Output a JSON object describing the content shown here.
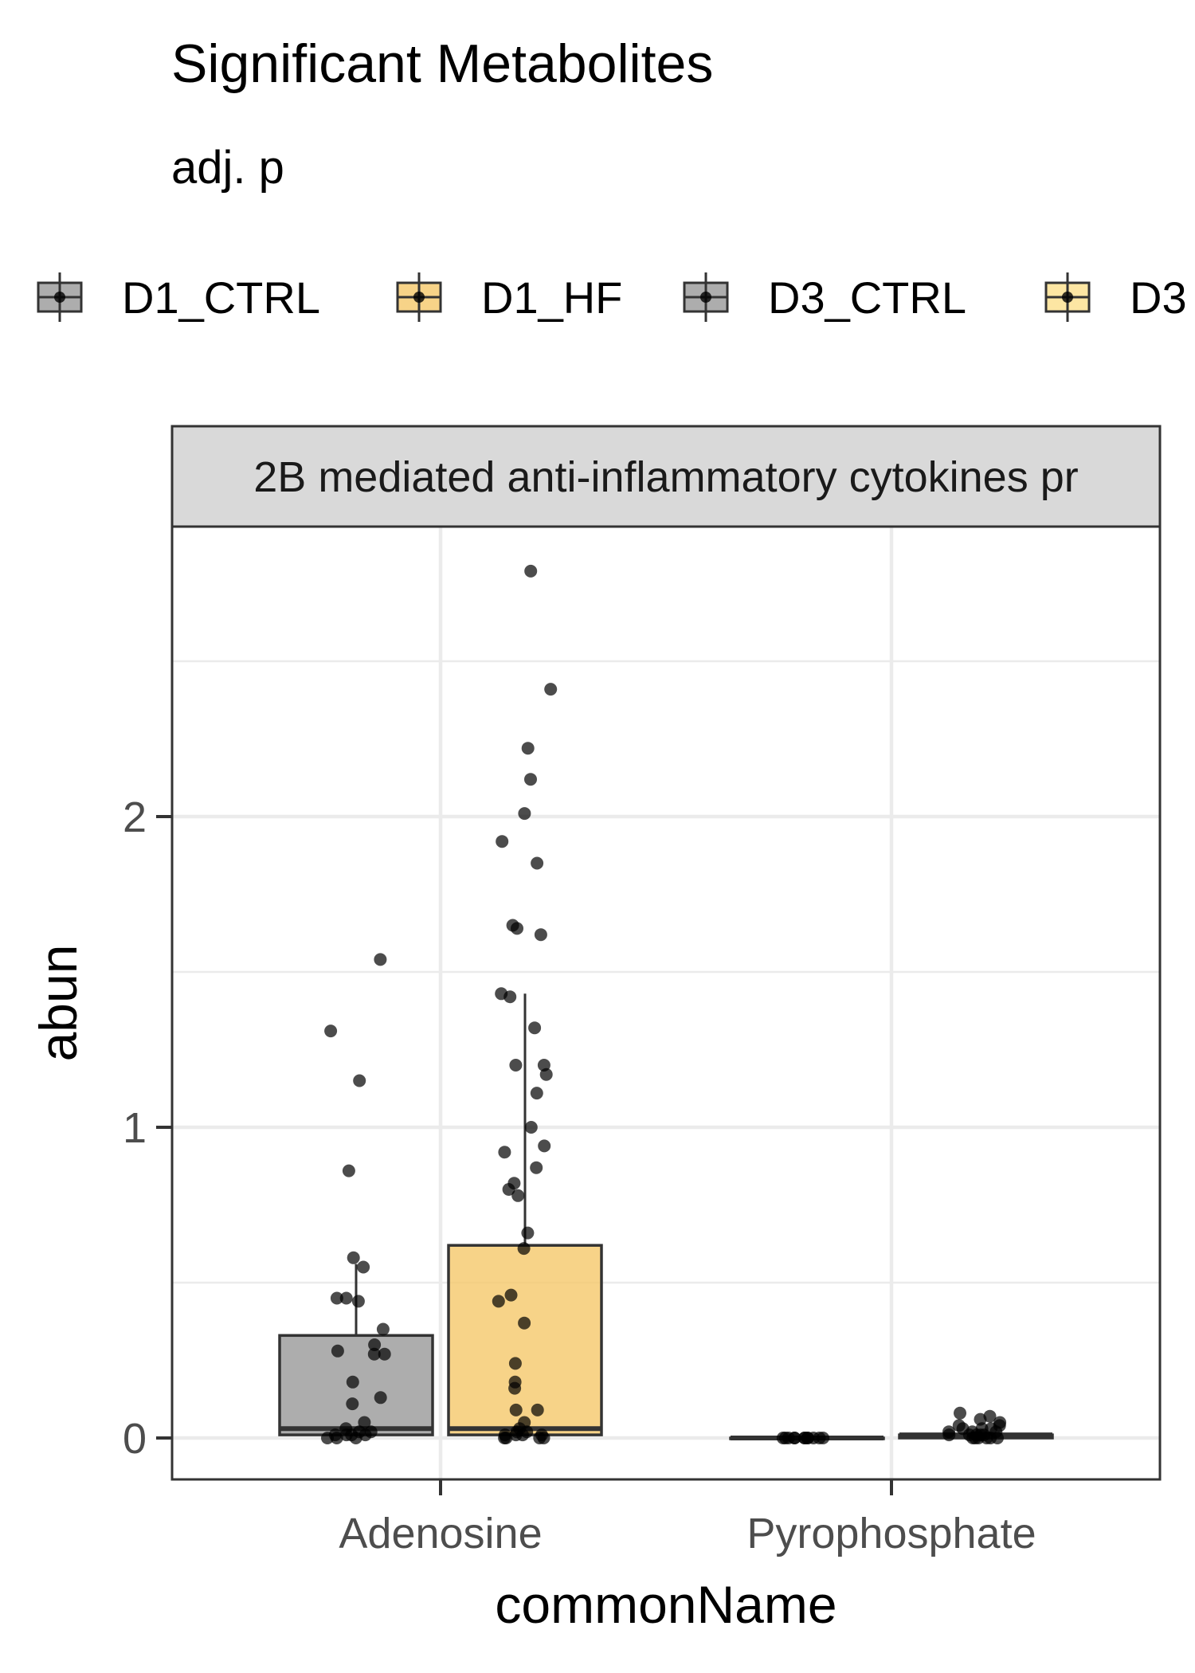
{
  "chart_data": {
    "type": "bar",
    "title": "Significant Metabolites",
    "subtitle": "adj. p",
    "facet_label": "2B mediated anti-inflammatory cytokines pr",
    "xlabel": "commonName",
    "ylabel": "abun",
    "ylim": [
      -0.13,
      2.93
    ],
    "y_ticks": [
      0,
      1,
      2
    ],
    "grid": true,
    "legend_position": "top",
    "categories": [
      "Adenosine",
      "Pyrophosphate"
    ],
    "series": [
      {
        "name": "D1_CTRL",
        "color": "#999999",
        "stats": [
          {
            "category": "Adenosine",
            "q1": 0.01,
            "median": 0.03,
            "q3": 0.33,
            "whisker_high": 0.56
          },
          {
            "category": "Pyrophosphate",
            "q1": 0.0,
            "median": 0.0,
            "q3": 0.0,
            "whisker_high": 0.0
          }
        ],
        "points": [
          {
            "category": "Adenosine",
            "values": [
              1.54,
              1.31,
              1.15,
              0.86,
              0.58,
              0.55,
              0.45,
              0.45,
              0.44,
              0.35,
              0.3,
              0.28,
              0.27,
              0.27,
              0.18,
              0.13,
              0.11,
              0.05,
              0.03,
              0.02,
              0.02,
              0.01,
              0.01,
              0.01,
              0.01,
              0.0,
              0.0,
              0.0
            ]
          },
          {
            "category": "Pyrophosphate",
            "values": [
              0.0,
              0.0,
              0.0,
              0.0,
              0.0,
              0.0,
              0.0,
              0.0,
              0.0,
              0.0,
              0.0,
              0.0
            ]
          }
        ]
      },
      {
        "name": "D1_HF",
        "color": "#F5C86A",
        "stats": [
          {
            "category": "Adenosine",
            "q1": 0.01,
            "median": 0.03,
            "q3": 0.62,
            "whisker_high": 1.43
          },
          {
            "category": "Pyrophosphate",
            "q1": 0.0,
            "median": 0.01,
            "q3": 0.01,
            "whisker_high": 0.02
          }
        ],
        "points": [
          {
            "category": "Adenosine",
            "values": [
              2.79,
              2.41,
              2.22,
              2.12,
              2.01,
              1.92,
              1.85,
              1.65,
              1.64,
              1.62,
              1.43,
              1.42,
              1.32,
              1.2,
              1.2,
              1.17,
              1.11,
              1.0,
              0.94,
              0.92,
              0.87,
              0.82,
              0.8,
              0.78,
              0.66,
              0.61,
              0.46,
              0.44,
              0.37,
              0.24,
              0.18,
              0.16,
              0.09,
              0.09,
              0.05,
              0.03,
              0.02,
              0.02,
              0.01,
              0.01,
              0.01,
              0.01,
              0.0,
              0.0,
              0.0,
              0.0
            ]
          },
          {
            "category": "Pyrophosphate",
            "values": [
              0.08,
              0.07,
              0.06,
              0.05,
              0.04,
              0.04,
              0.03,
              0.03,
              0.03,
              0.02,
              0.02,
              0.02,
              0.01,
              0.01,
              0.01,
              0.01,
              0.01,
              0.0,
              0.0,
              0.0,
              0.0,
              0.0,
              0.0
            ]
          }
        ]
      },
      {
        "name": "D3_CTRL",
        "color": "#999999",
        "stats": [],
        "points": []
      },
      {
        "name": "D3",
        "color": "#FDE08C",
        "stats": [],
        "points": []
      }
    ]
  }
}
